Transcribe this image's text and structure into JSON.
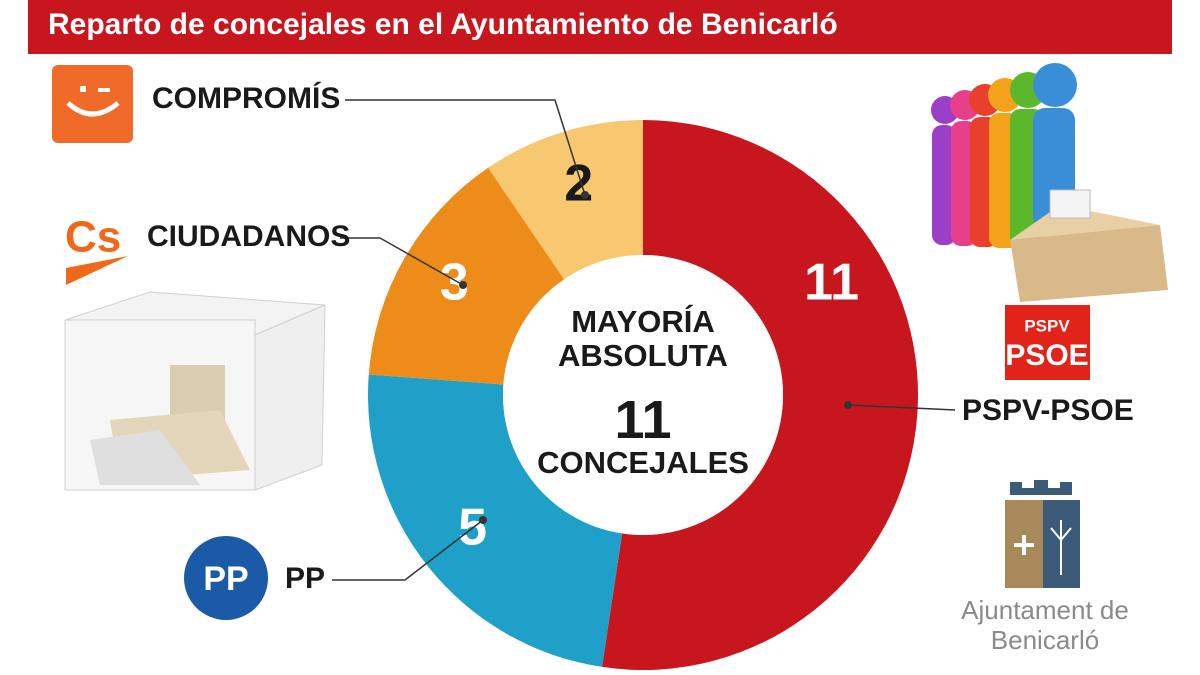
{
  "chart_data": {
    "type": "donut",
    "title": "Reparto de concejales en el Ayuntamiento de Benicarló",
    "categories": [
      "PSPV-PSOE",
      "PP",
      "CIUDADANOS",
      "COMPROMÍS"
    ],
    "values": [
      11,
      5,
      3,
      2
    ],
    "colors": [
      "#c8161e",
      "#1fa0c8",
      "#ee8c1a",
      "#f8c870"
    ],
    "center_label": "MAYORÍA ABSOLUTA",
    "majority_value": 11,
    "majority_unit": "CONCEJALES"
  },
  "logos": {
    "psoe_top": "PSPV",
    "psoe_bottom": "PSOE",
    "cs": "Cs",
    "pp": "PP",
    "ajuntament": "Ajuntament de Benicarló"
  }
}
